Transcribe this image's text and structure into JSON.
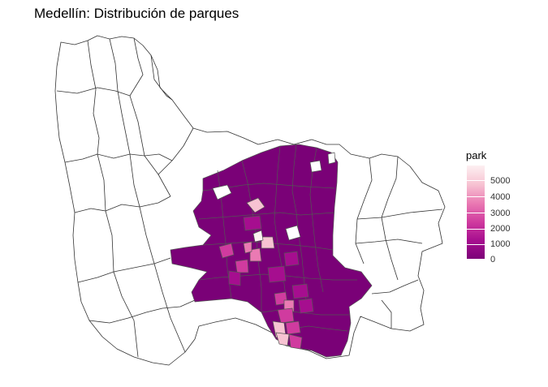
{
  "title": "Medellín: Distribución de parques",
  "legend": {
    "title": "park",
    "min": 0,
    "max": 5800,
    "breaks": [
      "5000",
      "4000",
      "3000",
      "2000",
      "1000",
      "0"
    ],
    "break_values": [
      5000,
      4000,
      3000,
      2000,
      1000,
      0
    ],
    "colors": [
      "#fdf0f2",
      "#f7c3d2",
      "#ea7ab3",
      "#d03b9f",
      "#a60e8f",
      "#7a0177"
    ]
  },
  "map": {
    "outline_color": "#333333",
    "urban_fill": "#7a0177",
    "rural_fill": "#ffffff"
  }
}
